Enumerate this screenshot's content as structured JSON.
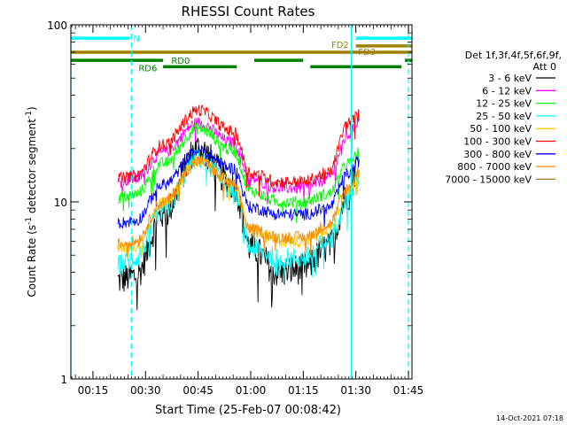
{
  "chart_data": {
    "type": "line",
    "title": "RHESSI Count Rates",
    "xlabel": "Start Time (25-Feb-07 00:08:42)",
    "ylabel": "Count Rate (s⁻¹ detector segment⁻¹)",
    "ylabel_main": "Count Rate (s",
    "ylabel_sup1": "-1",
    "ylabel_mid": " detector segment",
    "ylabel_sup2": "-1",
    "ylabel_end": ")",
    "y_scale": "log",
    "xlim": [
      "00:08:42",
      "01:46:00"
    ],
    "ylim": [
      1,
      100
    ],
    "x_ticks": [
      "00:15",
      "00:30",
      "00:45",
      "01:00",
      "01:15",
      "01:30",
      "01:45"
    ],
    "y_ticks": [
      "1",
      "10",
      "100"
    ],
    "timestamp": "14-Oct-2021 07:18",
    "legend": {
      "placement": "right",
      "header1": "Det 1f,3f,4f,5f,6f,9f,",
      "header2": "Att 0"
    },
    "series": [
      {
        "name": "3 - 6 keV",
        "color": "#000000",
        "x": [
          "00:22",
          "00:27",
          "00:35",
          "00:45",
          "00:55",
          "01:00",
          "01:08",
          "01:15",
          "01:22",
          "01:28",
          "01:30"
        ],
        "y": [
          3.6,
          3.8,
          8.5,
          20.0,
          12.5,
          5.5,
          4.0,
          4.2,
          5.5,
          11.0,
          15.0
        ]
      },
      {
        "name": "6 - 12 keV",
        "color": "#ff00ff",
        "x": [
          "00:22",
          "00:27",
          "00:35",
          "00:45",
          "00:55",
          "01:00",
          "01:08",
          "01:15",
          "01:22",
          "01:28",
          "01:31"
        ],
        "y": [
          13.0,
          13.5,
          19.0,
          28.0,
          21.5,
          13.5,
          12.0,
          12.0,
          13.5,
          24.0,
          29.0
        ]
      },
      {
        "name": "12 - 25 keV",
        "color": "#00ff00",
        "x": [
          "00:22",
          "00:27",
          "00:35",
          "00:45",
          "00:55",
          "01:00",
          "01:08",
          "01:15",
          "01:22",
          "01:28",
          "01:31"
        ],
        "y": [
          10.5,
          11.0,
          16.5,
          26.0,
          19.5,
          11.5,
          10.0,
          10.0,
          11.0,
          16.5,
          19.0
        ]
      },
      {
        "name": "25 - 50 keV",
        "color": "#00ffff",
        "x": [
          "00:22",
          "00:27",
          "00:35",
          "00:45",
          "00:55",
          "01:00",
          "01:08",
          "01:15",
          "01:22",
          "01:28",
          "01:31"
        ],
        "y": [
          4.4,
          4.8,
          9.0,
          17.5,
          12.0,
          5.5,
          4.8,
          4.8,
          6.0,
          11.0,
          14.0
        ]
      },
      {
        "name": "50 - 100 keV",
        "color": "#ffcc00",
        "x": [
          "00:22",
          "00:27",
          "00:35",
          "00:45",
          "00:55",
          "01:00",
          "01:08",
          "01:15",
          "01:22",
          "01:28",
          "01:31"
        ],
        "y": [
          5.4,
          5.6,
          9.8,
          17.0,
          12.8,
          6.8,
          6.0,
          6.0,
          7.0,
          11.5,
          14.5
        ]
      },
      {
        "name": "100 - 300 keV",
        "color": "#ff0000",
        "x": [
          "00:22",
          "00:27",
          "00:35",
          "00:45",
          "00:55",
          "01:00",
          "01:08",
          "01:15",
          "01:22",
          "01:28",
          "01:31"
        ],
        "y": [
          13.5,
          14.0,
          21.0,
          33.0,
          25.0,
          14.5,
          13.0,
          13.0,
          14.5,
          28.0,
          31.0
        ]
      },
      {
        "name": "300 - 800 keV",
        "color": "#0000ff",
        "x": [
          "00:22",
          "00:27",
          "00:35",
          "00:45",
          "00:55",
          "01:00",
          "01:08",
          "01:15",
          "01:22",
          "01:28",
          "01:31"
        ],
        "y": [
          7.6,
          7.8,
          12.5,
          19.5,
          15.5,
          9.3,
          8.5,
          8.5,
          9.2,
          14.5,
          17.0
        ]
      },
      {
        "name": "800 - 7000 keV",
        "color": "#ff8800",
        "x": [
          "00:22",
          "00:27",
          "00:35",
          "00:45",
          "00:55",
          "01:00",
          "01:08",
          "01:15",
          "01:22",
          "01:28",
          "01:31"
        ],
        "y": [
          5.8,
          6.0,
          10.0,
          17.0,
          12.5,
          7.0,
          6.3,
          6.3,
          7.4,
          12.0,
          15.0
        ]
      },
      {
        "name": "7000 - 15000 keV",
        "color": "#a07800",
        "x": [],
        "y": []
      }
    ],
    "flag_bars": [
      {
        "label": "N",
        "color": "#00ffff",
        "segments": [
          [
            "00:08:42",
            "00:25:30"
          ],
          [
            "01:30:00",
            "01:46:00"
          ]
        ],
        "level": 84
      },
      {
        "label": "FD2",
        "color": "#a08000",
        "segments": [
          [
            "00:08:42",
            "01:46:00"
          ]
        ],
        "level": 70
      },
      {
        "label": "FD3",
        "color": "#a08000",
        "segments": [
          [
            "01:30:00",
            "01:46:00"
          ]
        ],
        "level": 76
      },
      {
        "label": "RD0",
        "color": "#008000",
        "segments": [
          [
            "00:08:42",
            "00:35:00"
          ],
          [
            "01:01:00",
            "01:15:00"
          ],
          [
            "01:44:00",
            "01:46:00"
          ]
        ],
        "level": 63
      },
      {
        "label": "RD6",
        "color": "#008000",
        "segments": [
          [
            "00:35:00",
            "00:56:00"
          ],
          [
            "01:17:00",
            "01:43:00"
          ]
        ],
        "level": 58
      }
    ],
    "vlines": [
      {
        "x": "00:08:42",
        "color": "#00ffff",
        "style": "solid"
      },
      {
        "x": "00:26:00",
        "color": "#00ffff",
        "style": "dashed"
      },
      {
        "x": "01:28:42",
        "color": "#00ffff",
        "style": "solid"
      },
      {
        "x": "01:45:00",
        "color": "#00ffff",
        "style": "dashed"
      }
    ]
  }
}
